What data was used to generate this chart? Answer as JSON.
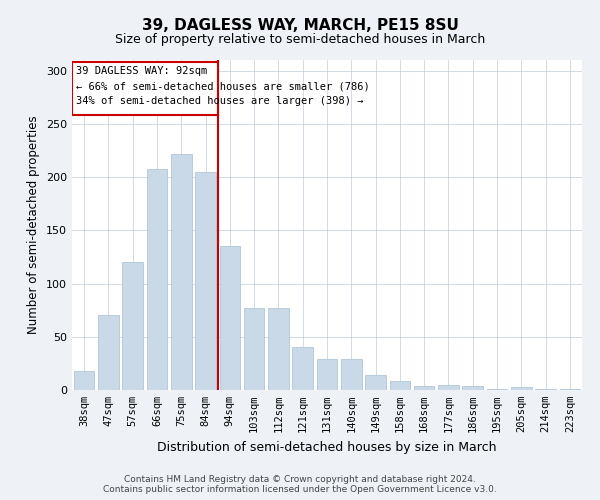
{
  "title": "39, DAGLESS WAY, MARCH, PE15 8SU",
  "subtitle": "Size of property relative to semi-detached houses in March",
  "xlabel": "Distribution of semi-detached houses by size in March",
  "ylabel": "Number of semi-detached properties",
  "bar_labels": [
    "38sqm",
    "47sqm",
    "57sqm",
    "66sqm",
    "75sqm",
    "84sqm",
    "94sqm",
    "103sqm",
    "112sqm",
    "121sqm",
    "131sqm",
    "140sqm",
    "149sqm",
    "158sqm",
    "168sqm",
    "177sqm",
    "186sqm",
    "195sqm",
    "205sqm",
    "214sqm",
    "223sqm"
  ],
  "bar_values": [
    18,
    70,
    120,
    208,
    222,
    205,
    135,
    77,
    77,
    40,
    29,
    29,
    14,
    8,
    4,
    5,
    4,
    1,
    3,
    1,
    1
  ],
  "bar_color": "#c9d9e8",
  "bar_edgecolor": "#a8bfd0",
  "vline_color": "#cc0000",
  "annotation_title": "39 DAGLESS WAY: 92sqm",
  "annotation_line1": "← 66% of semi-detached houses are smaller (786)",
  "annotation_line2": "34% of semi-detached houses are larger (398) →",
  "annotation_box_color": "#cc0000",
  "ylim": [
    0,
    310
  ],
  "yticks": [
    0,
    50,
    100,
    150,
    200,
    250,
    300
  ],
  "footer1": "Contains HM Land Registry data © Crown copyright and database right 2024.",
  "footer2": "Contains public sector information licensed under the Open Government Licence v3.0.",
  "bg_color": "#eef2f7",
  "plot_bg_color": "#ffffff"
}
